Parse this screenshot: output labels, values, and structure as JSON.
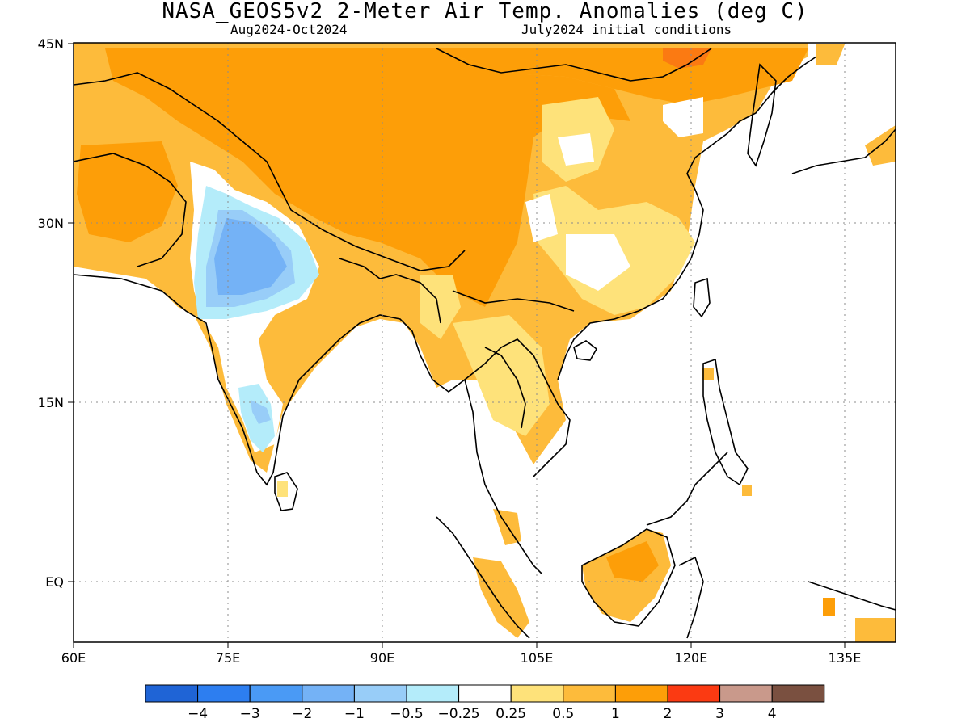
{
  "title": "NASA_GEOS5v2 2-Meter Air Temp. Anomalies (deg C)",
  "subtitle_left": "Aug2024-Oct2024",
  "subtitle_right": "July2024 initial conditions",
  "lat_labels": [
    "45N",
    "30N",
    "15N",
    "EQ"
  ],
  "lon_labels": [
    "60E",
    "75E",
    "90E",
    "105E",
    "120E",
    "135E"
  ],
  "colorbar": {
    "colors": [
      "#1f64d6",
      "#2d7ef0",
      "#4a9af5",
      "#74b2f6",
      "#98cdf8",
      "#b4ecfa",
      "#ffffff",
      "#fee27a",
      "#fdbb3b",
      "#fd9e08",
      "#fb3a12",
      "#c9998b",
      "#7a5040"
    ],
    "labels": [
      "-4",
      "-3",
      "-2",
      "-1",
      "-0.5",
      "-0.25",
      "0.25",
      "0.5",
      "1",
      "2",
      "3",
      "4"
    ]
  },
  "chart_data": {
    "type": "heatmap",
    "title": "NASA_GEOS5v2 2-Meter Air Temp. Anomalies (deg C)",
    "x_range": [
      60,
      140
    ],
    "y_range": [
      -5,
      45
    ],
    "x_ticks": [
      60,
      75,
      90,
      105,
      120,
      135
    ],
    "y_ticks": [
      0,
      15,
      30,
      45
    ],
    "grid": true,
    "color_levels": [
      -4,
      -3,
      -2,
      -1,
      -0.5,
      -0.25,
      0.25,
      0.5,
      1,
      2,
      3,
      4
    ]
  }
}
